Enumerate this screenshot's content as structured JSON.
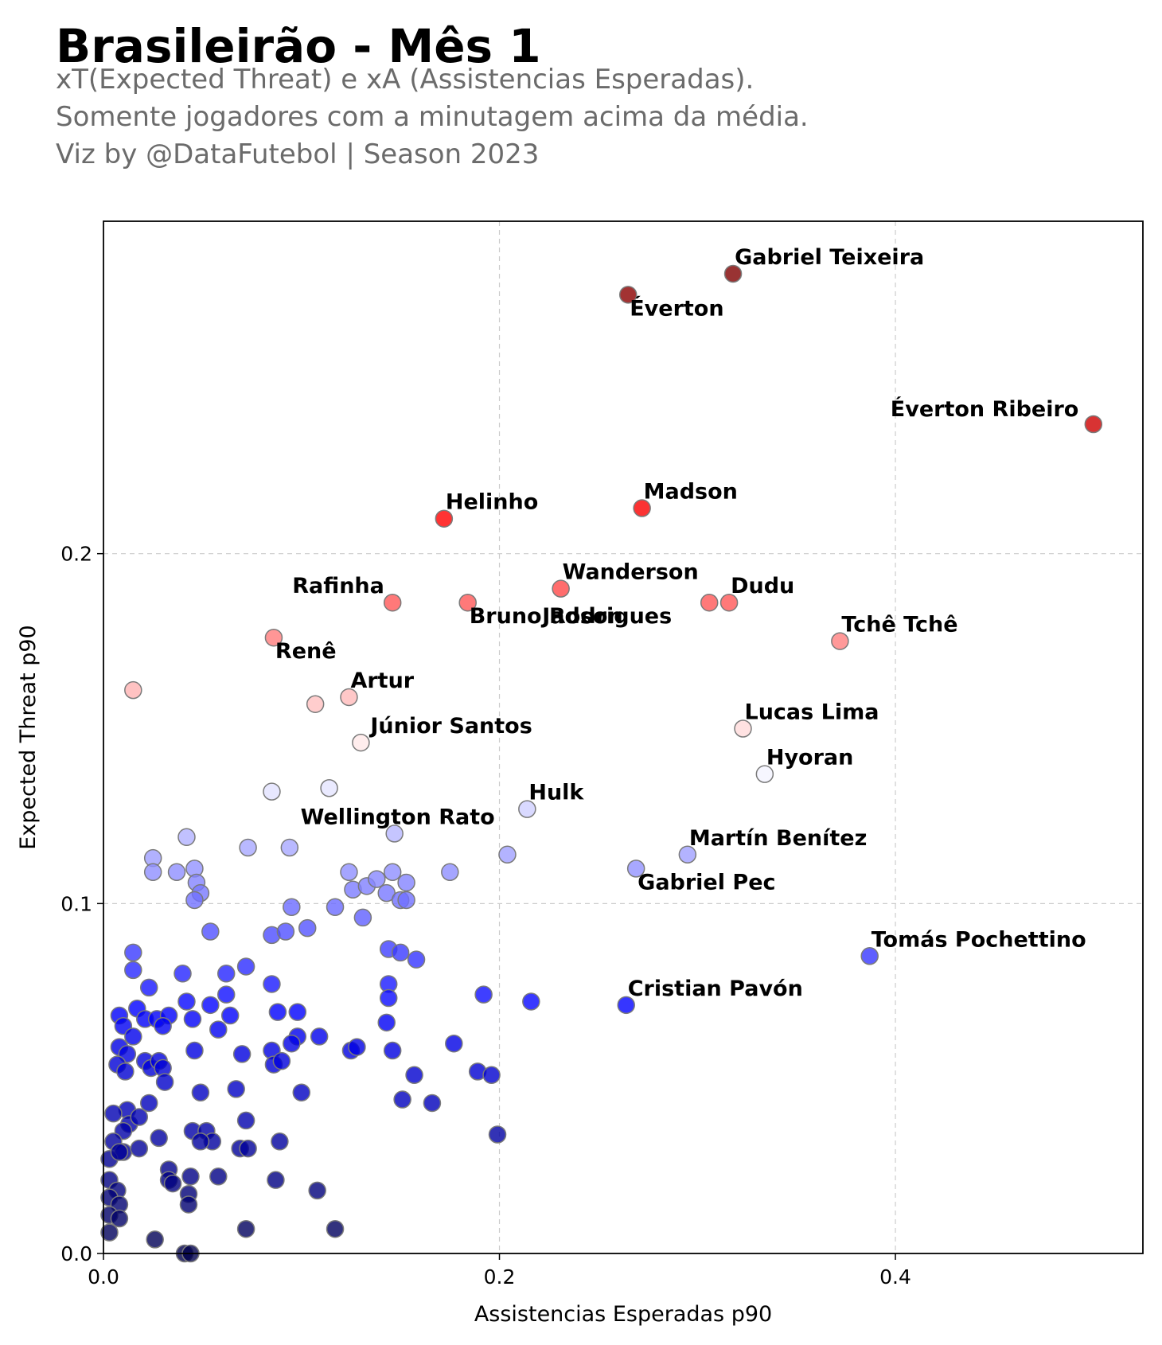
{
  "header": {
    "title": "Brasileirão - Mês 1",
    "subtitle_lines": [
      "xT(Expected Threat) e xA (Assistencias Esperadas).",
      "Somente jogadores com a minutagem acima da média.",
      "Viz by @DataFutebol | Season 2023"
    ]
  },
  "chart_data": {
    "type": "scatter",
    "xlabel": "Assistencias Esperadas p90",
    "ylabel": "Expected Threat p90",
    "xlim": [
      0.0,
      0.525
    ],
    "ylim": [
      0.0,
      0.295
    ],
    "x_ticks": [
      0.0,
      0.2,
      0.4
    ],
    "x_tick_labels": [
      "0.0",
      "0.2",
      "0.4"
    ],
    "y_ticks": [
      0.0,
      0.1,
      0.2
    ],
    "y_tick_labels": [
      "0.0",
      "0.1",
      "0.2"
    ],
    "grid": true,
    "color_scale": "seismic (by Expected Threat p90)",
    "labeled_points": [
      {
        "name": "Gabriel Teixeira",
        "x": 0.318,
        "y": 0.28
      },
      {
        "name": "Éverton",
        "x": 0.265,
        "y": 0.274
      },
      {
        "name": "Éverton Ribeiro",
        "x": 0.5,
        "y": 0.237
      },
      {
        "name": "Madson",
        "x": 0.272,
        "y": 0.213
      },
      {
        "name": "Helinho",
        "x": 0.172,
        "y": 0.21
      },
      {
        "name": "Wanderson",
        "x": 0.231,
        "y": 0.19
      },
      {
        "name": "Dudu",
        "x": 0.316,
        "y": 0.186
      },
      {
        "name": "Rafinha",
        "x": 0.146,
        "y": 0.186
      },
      {
        "name": "Bruno Rodrigues",
        "x": 0.184,
        "y": 0.186
      },
      {
        "name": "Jadson",
        "x": 0.306,
        "y": 0.186
      },
      {
        "name": "Renê",
        "x": 0.086,
        "y": 0.176
      },
      {
        "name": "Tchê Tchê",
        "x": 0.372,
        "y": 0.175
      },
      {
        "name": "Artur",
        "x": 0.124,
        "y": 0.159
      },
      {
        "name": "Lucas Lima",
        "x": 0.323,
        "y": 0.15
      },
      {
        "name": "Júnior Santos",
        "x": 0.13,
        "y": 0.146
      },
      {
        "name": "Hyoran",
        "x": 0.334,
        "y": 0.137
      },
      {
        "name": "Hulk",
        "x": 0.214,
        "y": 0.127
      },
      {
        "name": "Wellington Rato",
        "x": 0.147,
        "y": 0.12
      },
      {
        "name": "Martín Benítez",
        "x": 0.295,
        "y": 0.114
      },
      {
        "name": "Gabriel Pec",
        "x": 0.269,
        "y": 0.11
      },
      {
        "name": "Tomás Pochettino",
        "x": 0.387,
        "y": 0.085
      },
      {
        "name": "Cristian Pavón",
        "x": 0.264,
        "y": 0.071
      }
    ],
    "other_points": [
      [
        0.015,
        0.161
      ],
      [
        0.107,
        0.157
      ],
      [
        0.085,
        0.132
      ],
      [
        0.114,
        0.133
      ],
      [
        0.042,
        0.119
      ],
      [
        0.073,
        0.116
      ],
      [
        0.094,
        0.116
      ],
      [
        0.025,
        0.113
      ],
      [
        0.025,
        0.109
      ],
      [
        0.037,
        0.109
      ],
      [
        0.046,
        0.11
      ],
      [
        0.047,
        0.106
      ],
      [
        0.049,
        0.103
      ],
      [
        0.046,
        0.101
      ],
      [
        0.124,
        0.109
      ],
      [
        0.146,
        0.109
      ],
      [
        0.126,
        0.104
      ],
      [
        0.133,
        0.105
      ],
      [
        0.138,
        0.107
      ],
      [
        0.143,
        0.103
      ],
      [
        0.15,
        0.101
      ],
      [
        0.153,
        0.101
      ],
      [
        0.153,
        0.106
      ],
      [
        0.175,
        0.109
      ],
      [
        0.204,
        0.114
      ],
      [
        0.095,
        0.099
      ],
      [
        0.117,
        0.099
      ],
      [
        0.131,
        0.096
      ],
      [
        0.054,
        0.092
      ],
      [
        0.085,
        0.091
      ],
      [
        0.092,
        0.092
      ],
      [
        0.103,
        0.093
      ],
      [
        0.015,
        0.086
      ],
      [
        0.144,
        0.087
      ],
      [
        0.15,
        0.086
      ],
      [
        0.158,
        0.084
      ],
      [
        0.015,
        0.081
      ],
      [
        0.04,
        0.08
      ],
      [
        0.062,
        0.08
      ],
      [
        0.072,
        0.082
      ],
      [
        0.023,
        0.076
      ],
      [
        0.042,
        0.072
      ],
      [
        0.062,
        0.074
      ],
      [
        0.085,
        0.077
      ],
      [
        0.144,
        0.077
      ],
      [
        0.144,
        0.073
      ],
      [
        0.192,
        0.074
      ],
      [
        0.216,
        0.072
      ],
      [
        0.054,
        0.071
      ],
      [
        0.064,
        0.068
      ],
      [
        0.008,
        0.068
      ],
      [
        0.017,
        0.07
      ],
      [
        0.021,
        0.067
      ],
      [
        0.027,
        0.067
      ],
      [
        0.033,
        0.068
      ],
      [
        0.045,
        0.067
      ],
      [
        0.088,
        0.069
      ],
      [
        0.098,
        0.069
      ],
      [
        0.143,
        0.066
      ],
      [
        0.01,
        0.065
      ],
      [
        0.015,
        0.062
      ],
      [
        0.03,
        0.065
      ],
      [
        0.058,
        0.064
      ],
      [
        0.098,
        0.062
      ],
      [
        0.109,
        0.062
      ],
      [
        0.008,
        0.059
      ],
      [
        0.012,
        0.057
      ],
      [
        0.046,
        0.058
      ],
      [
        0.07,
        0.057
      ],
      [
        0.085,
        0.058
      ],
      [
        0.095,
        0.06
      ],
      [
        0.125,
        0.058
      ],
      [
        0.128,
        0.059
      ],
      [
        0.146,
        0.058
      ],
      [
        0.177,
        0.06
      ],
      [
        0.007,
        0.054
      ],
      [
        0.011,
        0.052
      ],
      [
        0.021,
        0.055
      ],
      [
        0.024,
        0.053
      ],
      [
        0.028,
        0.055
      ],
      [
        0.03,
        0.053
      ],
      [
        0.086,
        0.054
      ],
      [
        0.09,
        0.055
      ],
      [
        0.157,
        0.051
      ],
      [
        0.189,
        0.052
      ],
      [
        0.196,
        0.051
      ],
      [
        0.031,
        0.049
      ],
      [
        0.049,
        0.046
      ],
      [
        0.067,
        0.047
      ],
      [
        0.1,
        0.046
      ],
      [
        0.151,
        0.044
      ],
      [
        0.166,
        0.043
      ],
      [
        0.012,
        0.041
      ],
      [
        0.023,
        0.043
      ],
      [
        0.005,
        0.04
      ],
      [
        0.013,
        0.037
      ],
      [
        0.018,
        0.039
      ],
      [
        0.072,
        0.038
      ],
      [
        0.01,
        0.035
      ],
      [
        0.045,
        0.035
      ],
      [
        0.052,
        0.035
      ],
      [
        0.055,
        0.032
      ],
      [
        0.199,
        0.034
      ],
      [
        0.005,
        0.032
      ],
      [
        0.01,
        0.029
      ],
      [
        0.018,
        0.03
      ],
      [
        0.028,
        0.033
      ],
      [
        0.049,
        0.032
      ],
      [
        0.069,
        0.03
      ],
      [
        0.089,
        0.032
      ],
      [
        0.003,
        0.027
      ],
      [
        0.008,
        0.029
      ],
      [
        0.033,
        0.024
      ],
      [
        0.033,
        0.021
      ],
      [
        0.044,
        0.022
      ],
      [
        0.058,
        0.022
      ],
      [
        0.073,
        0.03
      ],
      [
        0.003,
        0.021
      ],
      [
        0.007,
        0.018
      ],
      [
        0.035,
        0.02
      ],
      [
        0.087,
        0.021
      ],
      [
        0.003,
        0.016
      ],
      [
        0.008,
        0.014
      ],
      [
        0.043,
        0.017
      ],
      [
        0.043,
        0.014
      ],
      [
        0.108,
        0.018
      ],
      [
        0.003,
        0.011
      ],
      [
        0.008,
        0.01
      ],
      [
        0.003,
        0.006
      ],
      [
        0.026,
        0.004
      ],
      [
        0.072,
        0.007
      ],
      [
        0.117,
        0.007
      ],
      [
        0.041,
        0.0
      ],
      [
        0.044,
        0.0
      ]
    ]
  }
}
